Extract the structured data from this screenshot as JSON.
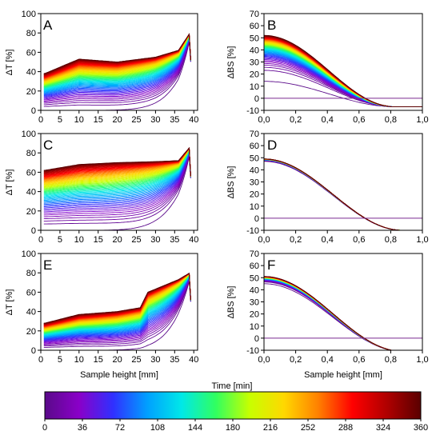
{
  "chart_data": [
    {
      "panel": "A",
      "type": "line",
      "variable": "transmission",
      "ylabel": "ΔT [%]",
      "xlabel": "",
      "xlim": [
        0,
        41
      ],
      "ylim": [
        0,
        100
      ],
      "xticks": [
        "0",
        "5",
        "10",
        "15",
        "20",
        "25",
        "30",
        "35",
        "40"
      ],
      "yticks": [
        "0",
        "20",
        "40",
        "60",
        "80",
        "100"
      ],
      "profile": {
        "last_curve": [
          [
            1,
            38
          ],
          [
            10,
            53
          ],
          [
            20,
            50
          ],
          [
            30,
            55
          ],
          [
            36,
            62
          ],
          [
            39,
            80
          ]
        ],
        "final_plateau": 62
      }
    },
    {
      "panel": "B",
      "type": "line",
      "variable": "backscattering",
      "ylabel": "ΔBS [%]",
      "xlabel": "",
      "xlim": [
        0,
        1
      ],
      "ylim": [
        -10,
        70
      ],
      "xticks": [
        "0,0",
        "0,2",
        "0,4",
        "0,6",
        "0,8",
        "1,0"
      ],
      "yticks": [
        "-10",
        "0",
        "10",
        "20",
        "30",
        "40",
        "50",
        "60",
        "70"
      ],
      "profile": {
        "start_max": 52,
        "start_min": 14,
        "end_value": -7,
        "crossing_x": 0.66
      }
    },
    {
      "panel": "C",
      "type": "line",
      "variable": "transmission",
      "ylabel": "ΔT [%]",
      "xlabel": "",
      "xlim": [
        0,
        41
      ],
      "ylim": [
        0,
        100
      ],
      "xticks": [
        "0",
        "5",
        "10",
        "15",
        "20",
        "25",
        "30",
        "35",
        "40"
      ],
      "yticks": [
        "0",
        "20",
        "40",
        "60",
        "80",
        "100"
      ],
      "profile": {
        "last_curve": [
          [
            1,
            62
          ],
          [
            10,
            68
          ],
          [
            20,
            70
          ],
          [
            30,
            71
          ],
          [
            36,
            72
          ],
          [
            39,
            86
          ]
        ],
        "final_plateau": 71
      }
    },
    {
      "panel": "D",
      "type": "line",
      "variable": "backscattering",
      "ylabel": "ΔBS [%]",
      "xlabel": "",
      "xlim": [
        0,
        1
      ],
      "ylim": [
        -10,
        70
      ],
      "xticks": [
        "0,0",
        "0,2",
        "0,4",
        "0,6",
        "0,8",
        "1,0"
      ],
      "yticks": [
        "-10",
        "0",
        "10",
        "20",
        "30",
        "40",
        "50",
        "60",
        "70"
      ],
      "profile": {
        "start_max": 49,
        "start_min": 47,
        "end_value": -10,
        "crossing_x": 0.7
      }
    },
    {
      "panel": "E",
      "type": "line",
      "variable": "transmission",
      "ylabel": "ΔT [%]",
      "xlabel": "Sample height [mm]",
      "xlim": [
        0,
        41
      ],
      "ylim": [
        0,
        100
      ],
      "xticks": [
        "0",
        "5",
        "10",
        "15",
        "20",
        "25",
        "30",
        "35",
        "40"
      ],
      "yticks": [
        "0",
        "20",
        "40",
        "60",
        "80",
        "100"
      ],
      "profile": {
        "last_curve": [
          [
            1,
            28
          ],
          [
            10,
            37
          ],
          [
            20,
            40
          ],
          [
            26,
            44
          ],
          [
            28,
            60
          ],
          [
            36,
            73
          ],
          [
            39,
            80
          ]
        ],
        "final_plateau": 45
      }
    },
    {
      "panel": "F",
      "type": "line",
      "variable": "backscattering",
      "ylabel": "ΔBS [%]",
      "xlabel": "Sample height [mm]",
      "xlim": [
        0,
        1
      ],
      "ylim": [
        -10,
        70
      ],
      "xticks": [
        "0,0",
        "0,2",
        "0,4",
        "0,6",
        "0,8",
        "1,0"
      ],
      "yticks": [
        "-10",
        "0",
        "10",
        "20",
        "30",
        "40",
        "50",
        "60",
        "70"
      ],
      "profile": {
        "start_max": 51,
        "start_min": 45,
        "end_value": -11,
        "crossing_x": 0.7
      }
    }
  ],
  "colorbar": {
    "title": "Time [min]",
    "min": 0,
    "max": 360,
    "ticks": [
      "0",
      "36",
      "72",
      "108",
      "144",
      "180",
      "216",
      "252",
      "288",
      "324",
      "360"
    ],
    "colors": [
      "#5a0a8a",
      "#8a00c8",
      "#3030ff",
      "#00a0ff",
      "#00e8e8",
      "#30ff60",
      "#c8ff00",
      "#ffd800",
      "#ff8000",
      "#ff0000",
      "#b00000",
      "#5a0000"
    ]
  }
}
